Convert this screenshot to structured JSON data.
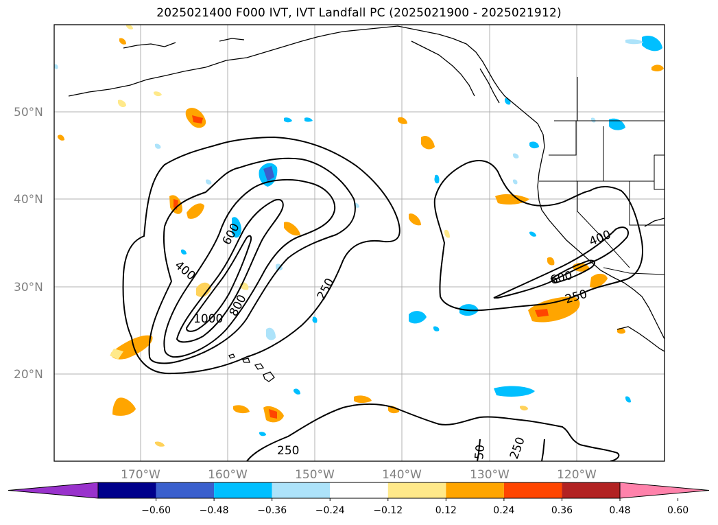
{
  "title": "2025021400 F000 IVT, IVT Landfall PC (2025021900 - 2025021912)",
  "map": {
    "lat_labels": [
      "50°N",
      "40°N",
      "30°N",
      "20°N"
    ],
    "lon_labels": [
      "170°W",
      "160°W",
      "150°W",
      "140°W",
      "130°W",
      "120°W"
    ],
    "ivt_contour_labels": [
      "600",
      "400",
      "1000",
      "800",
      "250",
      "400",
      "600",
      "250",
      "250",
      "50",
      "250"
    ],
    "grid": true,
    "coastlines": true,
    "state_borders": true
  },
  "colorbar": {
    "ticks": [
      "−0.60",
      "−0.48",
      "−0.36",
      "−0.24",
      "−0.12",
      "0.12",
      "0.24",
      "0.36",
      "0.48",
      "0.60"
    ],
    "colors": [
      "#9932CC",
      "#00008B",
      "#3A5FCD",
      "#00BFFF",
      "#ADE3FA",
      "#FFFFFF",
      "#FFE98A",
      "#FFA500",
      "#FF4500",
      "#B22222",
      "#FF82AB"
    ],
    "extend": "both"
  }
}
